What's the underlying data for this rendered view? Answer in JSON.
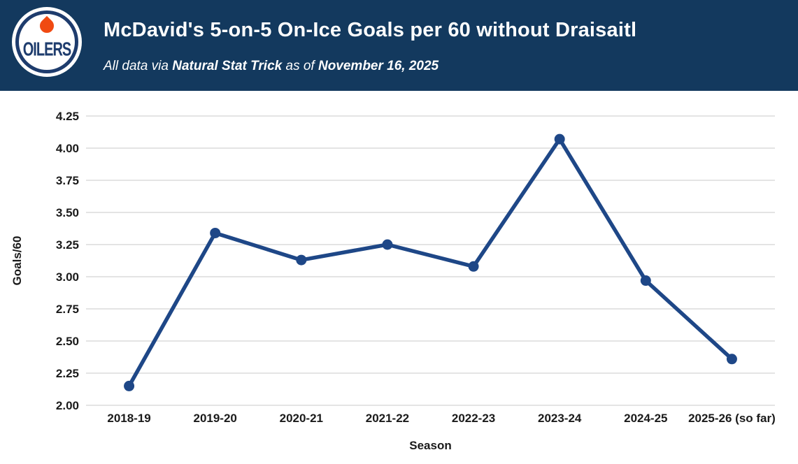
{
  "header": {
    "logo_icon": "edmonton-oilers-logo",
    "logo_text": "OILERS",
    "title": "McDavid's 5-on-5 On-Ice Goals per 60 without Draisaitl",
    "subtitle": {
      "prefix": "All data via ",
      "source": "Natural Stat Trick",
      "middle": " as of ",
      "date": "November 16, 2025"
    }
  },
  "chart_data": {
    "type": "line",
    "title": "McDavid's 5-on-5 On-Ice Goals per 60 without Draisaitl",
    "categories": [
      "2018-19",
      "2019-20",
      "2020-21",
      "2021-22",
      "2022-23",
      "2023-24",
      "2024-25",
      "2025-26 (so far)"
    ],
    "values": [
      2.15,
      3.34,
      3.13,
      3.25,
      3.08,
      4.07,
      2.97,
      2.36
    ],
    "xlabel": "Season",
    "ylabel": "Goals/60",
    "ylim": [
      2.0,
      4.25
    ],
    "ytick_step": 0.25,
    "grid": true,
    "legend": "none"
  },
  "colors": {
    "header_bg": "#13395E",
    "line": "#1E4787",
    "marker": "#1E4787",
    "grid": "#DBDBDB",
    "axis_text": "#1A1A1A",
    "title_text": "#FFFFFF",
    "logo_navy": "#1E3C6D",
    "logo_orange": "#F04A12"
  }
}
